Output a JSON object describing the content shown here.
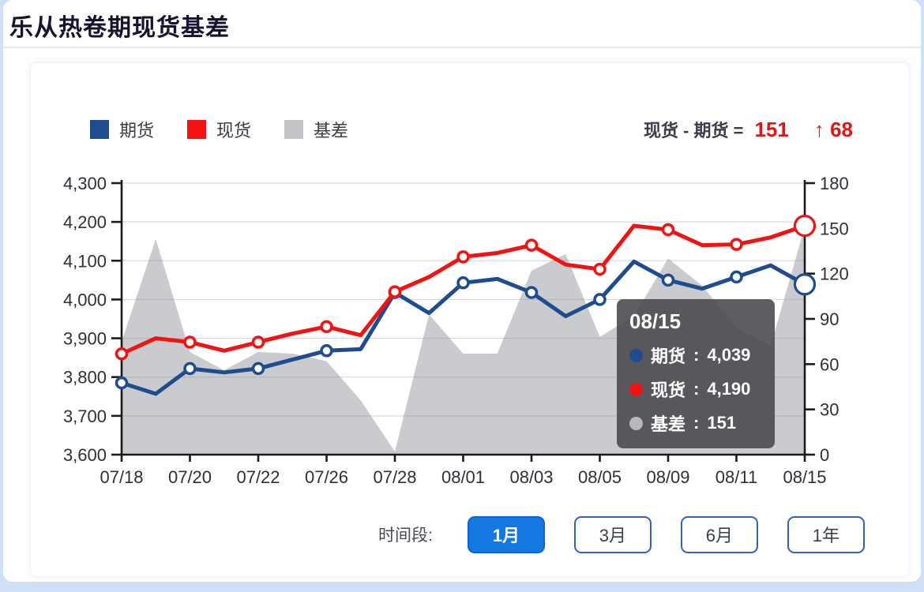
{
  "page_title": "乐从热卷期现货基差",
  "legend": {
    "items": [
      {
        "label": "期货",
        "color": "#1f4c8f"
      },
      {
        "label": "现货",
        "color": "#f31212"
      },
      {
        "label": "基差",
        "color": "#c4c4c9"
      }
    ]
  },
  "stat": {
    "formula": "现货 - 期货 =",
    "value": "151",
    "change": "↑ 68"
  },
  "tooltip": {
    "date": "08/15",
    "separator": " : ",
    "rows": [
      {
        "label": "期货",
        "value": "4,039",
        "dot_color": "#1f4c8f"
      },
      {
        "label": "现货",
        "value": "4,190",
        "dot_color": "#f31212"
      },
      {
        "label": "基差",
        "value": "151",
        "dot_color": "#b9b9bd"
      }
    ]
  },
  "controls": {
    "label": "时间段:",
    "options": [
      {
        "label": "1月",
        "active": true
      },
      {
        "label": "3月",
        "active": false
      },
      {
        "label": "6月",
        "active": false
      },
      {
        "label": "1年",
        "active": false
      }
    ]
  },
  "colors": {
    "futures_line": "#1f4c8f",
    "spot_line": "#f31212",
    "basis_area": "rgba(128,130,138,0.42)",
    "axis": "#1a1a1a",
    "gridline": "#dadae2",
    "tick_label": "#2f2f3a",
    "accent_red": "#e21414",
    "button_active": "#1478e2"
  },
  "chart_data": {
    "type": "line",
    "title": "乐从热卷期现货基差",
    "categories": [
      "07/18",
      "",
      "07/20",
      "",
      "07/22",
      "",
      "07/26",
      "",
      "07/28",
      "",
      "08/01",
      "",
      "08/03",
      "",
      "08/05",
      "",
      "08/09",
      "",
      "08/11",
      "",
      "08/15"
    ],
    "marker_every": 2,
    "series": [
      {
        "name": "期货",
        "type": "line",
        "axis": "left",
        "values": [
          3785,
          3757,
          3822,
          3812,
          3822,
          3845,
          3868,
          3872,
          4018,
          3965,
          4043,
          4053,
          4018,
          3957,
          4000,
          4098,
          4050,
          4028,
          4058,
          4088,
          4039
        ]
      },
      {
        "name": "现货",
        "type": "line",
        "axis": "left",
        "values": [
          3860,
          3900,
          3890,
          3868,
          3890,
          3912,
          3930,
          3908,
          4020,
          4058,
          4110,
          4120,
          4140,
          4090,
          4078,
          4190,
          4180,
          4140,
          4142,
          4160,
          4190
        ]
      },
      {
        "name": "基差",
        "type": "area",
        "axis": "right",
        "values": [
          75,
          143,
          68,
          56,
          68,
          67,
          62,
          36,
          2,
          93,
          67,
          67,
          122,
          133,
          78,
          92,
          130,
          112,
          84,
          72,
          151
        ]
      }
    ],
    "left_axis": {
      "min": 3600,
      "max": 4300,
      "step": 100
    },
    "right_axis": {
      "min": 0,
      "max": 180,
      "step": 30
    },
    "grid": true,
    "legend_position": "top-left",
    "highlight_index": 20
  }
}
